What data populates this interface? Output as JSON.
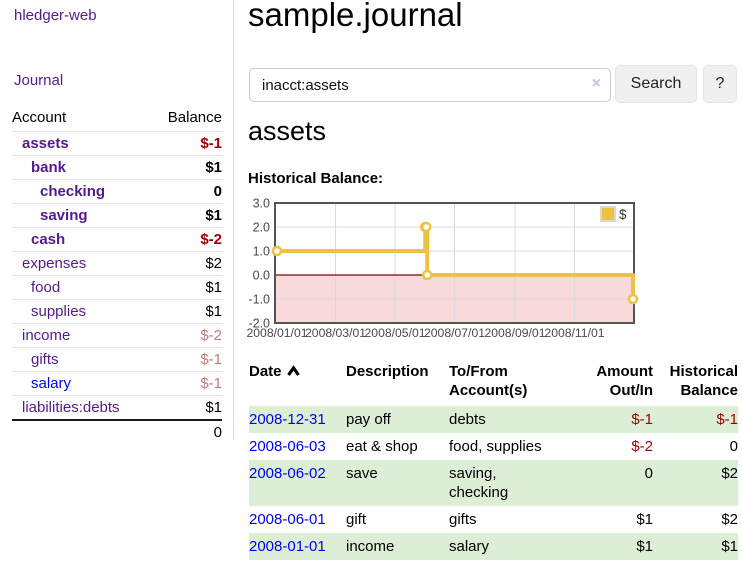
{
  "app": {
    "title": "hledger-web"
  },
  "sidebar": {
    "journal_label": "Journal",
    "table": {
      "account_header": "Account",
      "balance_header": "Balance",
      "accounts": [
        {
          "label": "assets",
          "indent": 0,
          "bold": true,
          "balance": "$-1",
          "balance_class": "neg-strong"
        },
        {
          "label": "bank",
          "indent": 1,
          "bold": true,
          "balance": "$1",
          "balance_class": ""
        },
        {
          "label": "checking",
          "indent": 2,
          "bold": true,
          "balance": "0",
          "balance_class": ""
        },
        {
          "label": "saving",
          "indent": 2,
          "bold": true,
          "balance": "$1",
          "balance_class": ""
        },
        {
          "label": "cash",
          "indent": 1,
          "bold": true,
          "balance": "$-2",
          "balance_class": "neg-strong"
        },
        {
          "label": "expenses",
          "indent": 0,
          "bold": false,
          "balance": "$2",
          "balance_class": ""
        },
        {
          "label": "food",
          "indent": 1,
          "bold": false,
          "balance": "$1",
          "balance_class": ""
        },
        {
          "label": "supplies",
          "indent": 1,
          "bold": false,
          "balance": "$1",
          "balance_class": ""
        },
        {
          "label": "income",
          "indent": 0,
          "bold": false,
          "balance": "$-2",
          "balance_class": "neg-soft"
        },
        {
          "label": "gifts",
          "indent": 1,
          "bold": false,
          "balance": "$-1",
          "balance_class": "neg-soft"
        },
        {
          "label": "salary",
          "indent": 1,
          "bold": false,
          "balance": "$-1",
          "balance_class": "neg-soft",
          "link_color": "blue"
        },
        {
          "label": "liabilities:debts",
          "indent": 0,
          "bold": false,
          "balance": "$1",
          "balance_class": ""
        }
      ],
      "total": "0"
    }
  },
  "main": {
    "title": "sample.journal",
    "search": {
      "value": "inacct:assets",
      "clear_icon": "×",
      "search_button": "Search",
      "help_button": "?"
    },
    "account_heading": "assets",
    "chart_label": "Historical Balance:"
  },
  "chart_data": {
    "type": "line",
    "step": true,
    "title": "Historical Balance",
    "series": [
      {
        "name": "$",
        "points": [
          [
            "2008-01-01",
            1
          ],
          [
            "2008-06-01",
            2
          ],
          [
            "2008-06-02",
            2
          ],
          [
            "2008-06-03",
            0
          ],
          [
            "2008-12-31",
            -1
          ]
        ]
      }
    ],
    "xlim": [
      "2008-01-01",
      "2008-12-31"
    ],
    "ylim": [
      -2.0,
      3.0
    ],
    "xticks": [
      "2008/01/01",
      "2008/03/01",
      "2008/05/01",
      "2008/07/01",
      "2008/09/01",
      "2008/11/01"
    ],
    "yticks": [
      3.0,
      2.0,
      1.0,
      0.0,
      -1.0,
      -2.0
    ],
    "legend": {
      "label": "$",
      "position": "top-right"
    },
    "grid": true,
    "colors": {
      "line": "#edc240",
      "marker_fill": "#ffffff",
      "negative_region": "#f9dada",
      "zero_line": "#8b0000",
      "grid": "#d9d9d9",
      "border": "#545454",
      "tick_text": "#4a4a4a",
      "legend_swatch_border": "#d9d9d9"
    }
  },
  "register": {
    "headers": {
      "date": "Date",
      "description": "Description",
      "accounts": "To/From Account(s)",
      "amount": "Amount Out/In",
      "balance": "Historical Balance"
    },
    "sort_icon": "chevron-up",
    "rows": [
      {
        "date": "2008-12-31",
        "description": "pay off",
        "accounts": "debts",
        "amount": "$-1",
        "amount_negative": true,
        "balance": "$-1",
        "balance_negative": true,
        "green": true
      },
      {
        "date": "2008-06-03",
        "description": "eat & shop",
        "accounts": "food, supplies",
        "amount": "$-2",
        "amount_negative": true,
        "balance": "0",
        "balance_negative": false,
        "green": false
      },
      {
        "date": "2008-06-02",
        "description": "save",
        "accounts": "saving,\nchecking",
        "amount": "0",
        "amount_negative": false,
        "balance": "$2",
        "balance_negative": false,
        "green": true
      },
      {
        "date": "2008-06-01",
        "description": "gift",
        "accounts": "gifts",
        "amount": "$1",
        "amount_negative": false,
        "balance": "$2",
        "balance_negative": false,
        "green": false
      },
      {
        "date": "2008-01-01",
        "description": "income",
        "accounts": "salary",
        "amount": "$1",
        "amount_negative": false,
        "balance": "$1",
        "balance_negative": false,
        "green": true
      }
    ]
  },
  "colors": {
    "link_purple": "#551a8b",
    "link_blue": "#0000ee",
    "negative_strong": "#9d0000",
    "negative_soft": "#bd7d7d",
    "row_green": "#ddeed6"
  }
}
